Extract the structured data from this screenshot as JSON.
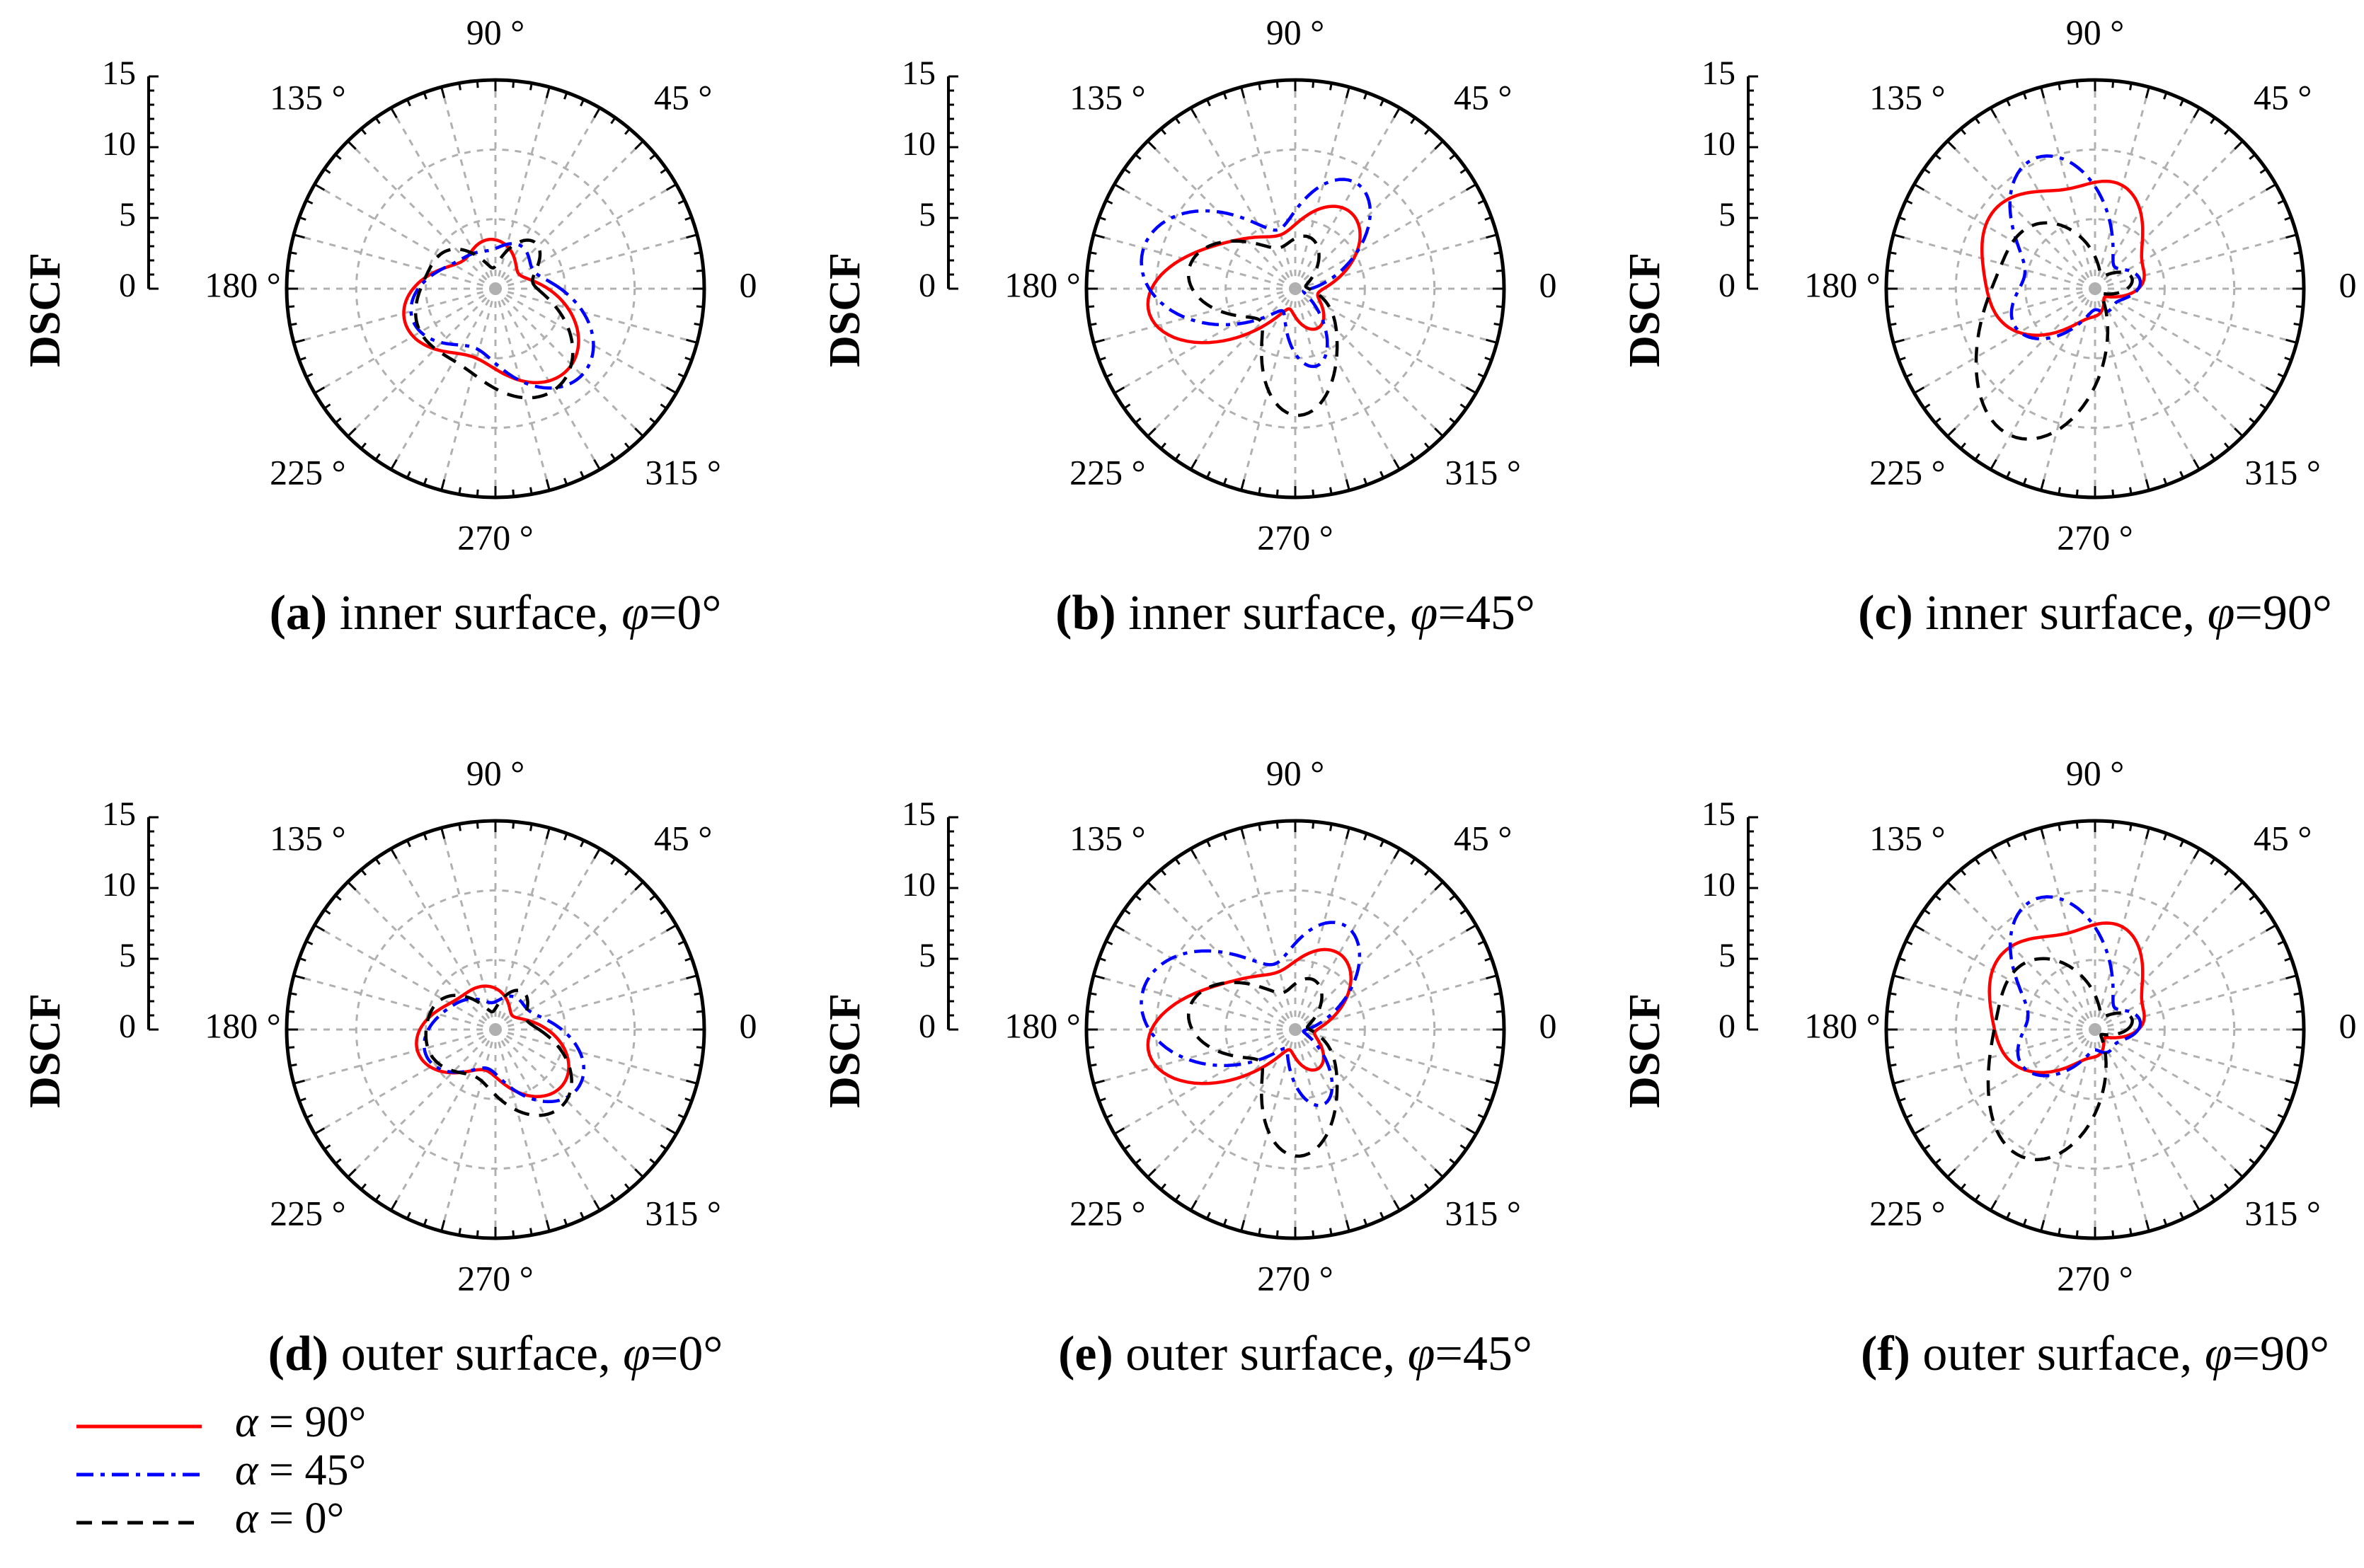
{
  "chart_data": {
    "type": "polar-line",
    "quantity": "DSCF",
    "radial_axis": {
      "label": "DSCF",
      "range": [
        0,
        15
      ],
      "ticks": [
        "15",
        "10",
        "5",
        "0"
      ],
      "grid_circles": [
        5,
        10
      ],
      "minor_tick_step": 1
    },
    "angular_axis": {
      "labels": [
        {
          "deg": 0,
          "text": "0"
        },
        {
          "deg": 45,
          "text": "45 °"
        },
        {
          "deg": 90,
          "text": "90 °"
        },
        {
          "deg": 135,
          "text": "135 °"
        },
        {
          "deg": 180,
          "text": "180 °"
        },
        {
          "deg": 225,
          "text": "225 °"
        },
        {
          "deg": 270,
          "text": "270 °"
        },
        {
          "deg": 315,
          "text": "315 °"
        }
      ],
      "spoke_step_deg": 15
    },
    "series_styles": [
      {
        "key": "a90",
        "label": "α = 90°",
        "alpha_sym": "α",
        "alpha_val": " = 90°",
        "color": "#ff0000",
        "dash": "none"
      },
      {
        "key": "a45",
        "label": "α = 45°",
        "alpha_sym": "α",
        "alpha_val": " = 45°",
        "color": "#0000ff",
        "dash": "24,10,6,10"
      },
      {
        "key": "a0",
        "label": "α = 0°",
        "alpha_sym": "α",
        "alpha_val": " = 0°",
        "color": "#000000",
        "dash": "22,14"
      }
    ],
    "panels": [
      {
        "id": "a",
        "tag": "(a)",
        "surface": "inner surface,",
        "phi_sym": "φ",
        "phi_val": "=0°",
        "series": [
          {
            "name": "α = 90°",
            "lobes": [
              [
                310,
                7.5,
                40
              ],
              [
                200,
                6.5,
                36
              ],
              [
                70,
                2.0,
                28
              ],
              [
                110,
                2.2,
                26
              ]
            ]
          },
          {
            "name": "α = 45°",
            "lobes": [
              [
                315,
                8.5,
                38
              ],
              [
                200,
                6.0,
                36
              ],
              [
                60,
                3.0,
                26
              ],
              [
                120,
                2.0,
                26
              ]
            ]
          },
          {
            "name": "α = 0°",
            "lobes": [
              [
                300,
                8.0,
                38
              ],
              [
                205,
                5.5,
                36
              ],
              [
                50,
                4.0,
                24
              ],
              [
                140,
                3.0,
                24
              ]
            ]
          }
        ]
      },
      {
        "id": "b",
        "tag": "(b)",
        "surface": "inner surface,",
        "phi_sym": "φ",
        "phi_val": "=45°",
        "series": [
          {
            "name": "α = 90°",
            "lobes": [
              [
                190,
                10.0,
                26
              ],
              [
                55,
                6.5,
                32
              ],
              [
                135,
                3.5,
                26
              ],
              [
                300,
                3.0,
                28
              ]
            ]
          },
          {
            "name": "α = 45°",
            "lobes": [
              [
                175,
                9.5,
                30
              ],
              [
                60,
                8.5,
                28
              ],
              [
                140,
                3.5,
                24
              ],
              [
                285,
                5.5,
                22
              ]
            ]
          },
          {
            "name": "α = 0°",
            "lobes": [
              [
                270,
                8.5,
                24
              ],
              [
                170,
                7.5,
                32
              ],
              [
                75,
                3.5,
                28
              ],
              [
                320,
                2.5,
                24
              ]
            ]
          }
        ]
      },
      {
        "id": "c",
        "tag": "(c)",
        "surface": "inner surface,",
        "phi_sym": "φ",
        "phi_val": "=90°",
        "series": [
          {
            "name": "α = 90°",
            "lobes": [
              [
                140,
                8.0,
                28
              ],
              [
                75,
                6.8,
                26
              ],
              [
                200,
                6.0,
                28
              ],
              [
                10,
                3.0,
                24
              ],
              [
                275,
                1.5,
                26
              ]
            ]
          },
          {
            "name": "α = 45°",
            "lobes": [
              [
                115,
                10.0,
                30
              ],
              [
                205,
                6.0,
                30
              ],
              [
                10,
                3.0,
                26
              ],
              [
                300,
                1.5,
                24
              ]
            ]
          },
          {
            "name": "α = 0°",
            "lobes": [
              [
                245,
                10.5,
                26
              ],
              [
                140,
                6.0,
                34
              ],
              [
                200,
                5.0,
                26
              ],
              [
                15,
                2.5,
                24
              ]
            ]
          }
        ]
      },
      {
        "id": "d",
        "tag": "(d)",
        "surface": "outer surface,",
        "phi_sym": "φ",
        "phi_val": "=0°",
        "series": [
          {
            "name": "α = 90°",
            "lobes": [
              [
                320,
                6.0,
                38
              ],
              [
                195,
                5.5,
                36
              ],
              [
                80,
                1.8,
                28
              ],
              [
                120,
                1.8,
                26
              ]
            ]
          },
          {
            "name": "α = 45°",
            "lobes": [
              [
                325,
                7.0,
                36
              ],
              [
                200,
                5.0,
                36
              ],
              [
                60,
                2.2,
                26
              ],
              [
                130,
                1.8,
                26
              ]
            ]
          },
          {
            "name": "α = 0°",
            "lobes": [
              [
                310,
                7.0,
                36
              ],
              [
                200,
                4.5,
                36
              ],
              [
                55,
                3.0,
                24
              ],
              [
                145,
                2.5,
                24
              ]
            ]
          }
        ]
      },
      {
        "id": "e",
        "tag": "(e)",
        "surface": "outer surface,",
        "phi_sym": "φ",
        "phi_val": "=45°",
        "series": [
          {
            "name": "α = 90°",
            "lobes": [
              [
                190,
                10.0,
                26
              ],
              [
                60,
                6.0,
                32
              ],
              [
                135,
                3.5,
                26
              ],
              [
                300,
                3.0,
                28
              ]
            ]
          },
          {
            "name": "α = 45°",
            "lobes": [
              [
                175,
                9.5,
                30
              ],
              [
                65,
                8.0,
                28
              ],
              [
                140,
                3.5,
                24
              ],
              [
                290,
                5.5,
                22
              ]
            ]
          },
          {
            "name": "α = 0°",
            "lobes": [
              [
                270,
                8.5,
                24
              ],
              [
                170,
                7.5,
                32
              ],
              [
                70,
                3.5,
                28
              ],
              [
                320,
                2.5,
                24
              ]
            ]
          }
        ]
      },
      {
        "id": "f",
        "tag": "(f)",
        "surface": "outer surface,",
        "phi_sym": "φ",
        "phi_val": "=90°",
        "series": [
          {
            "name": "α = 90°",
            "lobes": [
              [
                140,
                7.5,
                28
              ],
              [
                75,
                6.8,
                26
              ],
              [
                200,
                5.5,
                28
              ],
              [
                10,
                3.0,
                24
              ],
              [
                275,
                1.5,
                26
              ]
            ]
          },
          {
            "name": "α = 45°",
            "lobes": [
              [
                115,
                10.0,
                30
              ],
              [
                205,
                5.5,
                30
              ],
              [
                10,
                3.0,
                26
              ],
              [
                300,
                1.5,
                24
              ]
            ]
          },
          {
            "name": "α = 0°",
            "lobes": [
              [
                245,
                9.0,
                26
              ],
              [
                140,
                6.5,
                34
              ],
              [
                200,
                4.5,
                26
              ],
              [
                15,
                2.5,
                24
              ]
            ]
          }
        ]
      }
    ]
  }
}
